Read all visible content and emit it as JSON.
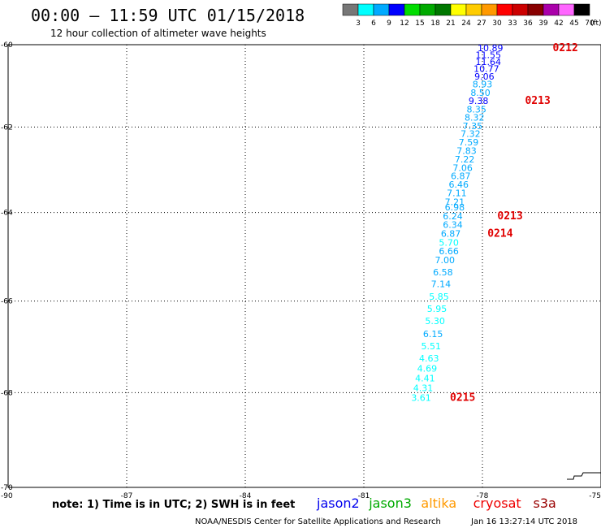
{
  "chart_data": {
    "type": "scatter",
    "title": "00:00 – 11:59 UTC 01/15/2018",
    "subtitle": "12 hour collection of altimeter wave heights",
    "xlim": [
      -90,
      -75
    ],
    "ylim": [
      -70,
      -60
    ],
    "x_ticks": [
      "-90",
      "-87",
      "-84",
      "-81",
      "-78",
      "-75"
    ],
    "y_ticks": [
      "-60",
      "-62",
      "-64",
      "-66",
      "-68",
      "-70"
    ],
    "grid": true,
    "legend": {
      "levels": [
        "3",
        "6",
        "9",
        "12",
        "15",
        "18",
        "21",
        "24",
        "27",
        "30",
        "33",
        "36",
        "39",
        "42",
        "45",
        "70"
      ],
      "unit": "(ft)",
      "colors": [
        "#777777",
        "#00ffff",
        "#00aaff",
        "#0000ff",
        "#00dd00",
        "#00aa00",
        "#007700",
        "#ffff00",
        "#ffcc00",
        "#ff9900",
        "#ff0000",
        "#cc0000",
        "#880000",
        "#aa00aa",
        "#ff66ff",
        "#000000"
      ]
    },
    "points": [
      {
        "x": -77.8,
        "y": -60.08,
        "value": "10.89"
      },
      {
        "x": -77.85,
        "y": -60.25,
        "value": "11.55"
      },
      {
        "x": -77.85,
        "y": -60.42,
        "value": "11.64"
      },
      {
        "x": -77.9,
        "y": -60.59,
        "value": "10.77"
      },
      {
        "x": -77.95,
        "y": -60.78,
        "value": "9.06"
      },
      {
        "x": -78.0,
        "y": -60.97,
        "value": "8.93"
      },
      {
        "x": -78.05,
        "y": -61.17,
        "value": "8.50"
      },
      {
        "x": -78.1,
        "y": -61.37,
        "value": "9.38"
      },
      {
        "x": -78.15,
        "y": -61.57,
        "value": "8.35"
      },
      {
        "x": -78.2,
        "y": -61.77,
        "value": "8.32"
      },
      {
        "x": -78.25,
        "y": -61.97,
        "value": "7.35"
      },
      {
        "x": -78.3,
        "y": -62.16,
        "value": "7.32"
      },
      {
        "x": -78.35,
        "y": -62.36,
        "value": "7.59"
      },
      {
        "x": -78.4,
        "y": -62.56,
        "value": "7.83"
      },
      {
        "x": -78.45,
        "y": -62.76,
        "value": "7.22"
      },
      {
        "x": -78.5,
        "y": -62.96,
        "value": "7.06"
      },
      {
        "x": -78.55,
        "y": -63.15,
        "value": "6.87"
      },
      {
        "x": -78.6,
        "y": -63.35,
        "value": "6.46"
      },
      {
        "x": -78.65,
        "y": -63.55,
        "value": "7.11"
      },
      {
        "x": -78.7,
        "y": -63.75,
        "value": "7.21"
      },
      {
        "x": -78.7,
        "y": -63.88,
        "value": "6.98"
      },
      {
        "x": -78.75,
        "y": -64.08,
        "value": "6.24"
      },
      {
        "x": -78.75,
        "y": -64.28,
        "value": "6.34"
      },
      {
        "x": -78.8,
        "y": -64.48,
        "value": "6.87"
      },
      {
        "x": -78.85,
        "y": -64.68,
        "value": "5.70"
      },
      {
        "x": -78.85,
        "y": -64.88,
        "value": "6.66"
      },
      {
        "x": -78.95,
        "y": -65.08,
        "value": "7.00"
      },
      {
        "x": -79.0,
        "y": -65.35,
        "value": "6.58"
      },
      {
        "x": -79.05,
        "y": -65.62,
        "value": "7.14"
      },
      {
        "x": -79.1,
        "y": -65.9,
        "value": "5.85"
      },
      {
        "x": -79.15,
        "y": -66.17,
        "value": "5.95"
      },
      {
        "x": -79.2,
        "y": -66.44,
        "value": "5.30"
      },
      {
        "x": -79.25,
        "y": -66.72,
        "value": "6.15"
      },
      {
        "x": -79.3,
        "y": -66.99,
        "value": "5.51"
      },
      {
        "x": -79.35,
        "y": -67.26,
        "value": "4.63"
      },
      {
        "x": -79.4,
        "y": -67.48,
        "value": "4.69"
      },
      {
        "x": -79.45,
        "y": -67.69,
        "value": "4.41"
      },
      {
        "x": -79.5,
        "y": -67.9,
        "value": "4.31"
      },
      {
        "x": -79.55,
        "y": -68.11,
        "value": "3.61"
      }
    ],
    "pass_labels": [
      {
        "x": -75.9,
        "y": -60.08,
        "text": "0212"
      },
      {
        "x": -76.6,
        "y": -61.37,
        "text": "0213"
      },
      {
        "x": -77.3,
        "y": -64.08,
        "text": "0213"
      },
      {
        "x": -77.55,
        "y": -64.48,
        "text": "0214"
      },
      {
        "x": -78.5,
        "y": -68.11,
        "text": "0215"
      }
    ]
  },
  "note": "note: 1) Time is in UTC; 2) SWH is in feet",
  "satellites": [
    {
      "name": "jason2",
      "color": "#0000ee"
    },
    {
      "name": "jason3",
      "color": "#00aa00"
    },
    {
      "name": "altika",
      "color": "#ff9900"
    },
    {
      "name": "cryosat",
      "color": "#ee0000"
    },
    {
      "name": "s3a",
      "color": "#990000"
    }
  ],
  "credit_left": "NOAA/NESDIS Center for Satellite Applications and Research",
  "credit_right": "Jan 16 13:27:14 UTC 2018"
}
